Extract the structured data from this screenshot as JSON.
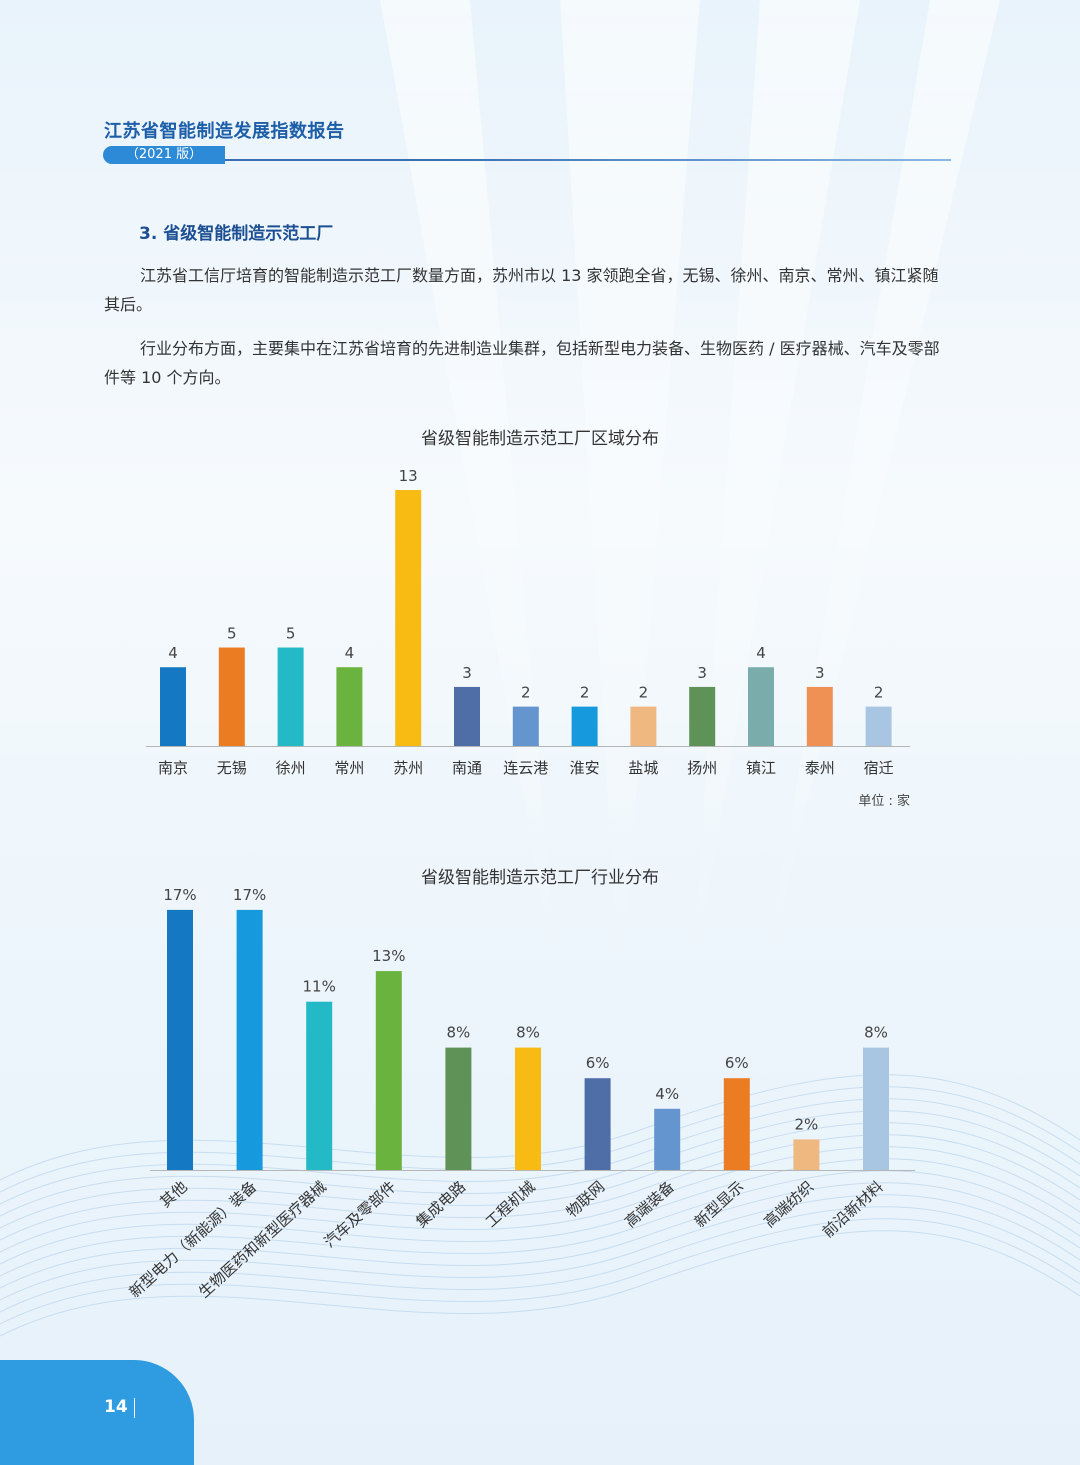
{
  "header": {
    "report_title": "江苏省智能制造发展指数报告",
    "edition": "（2021 版）"
  },
  "section": {
    "title": "3. 省级智能制造示范工厂",
    "paragraphs": [
      "江苏省工信厅培育的智能制造示范工厂数量方面，苏州市以 13 家领跑全省，无锡、徐州、南京、常州、镇江紧随其后。",
      "行业分布方面，主要集中在江苏省培育的先进制造业集群，包括新型电力装备、生物医药 / 医疗器械、汽车及零部件等 10 个方向。"
    ]
  },
  "colors": {
    "accent": "#1d5ea8",
    "page_tab": "#2f9be0"
  },
  "chart_data": [
    {
      "type": "bar",
      "title": "省级智能制造示范工厂区域分布",
      "unit_note": "单位 : 家",
      "categories": [
        "南京",
        "无锡",
        "徐州",
        "常州",
        "苏州",
        "南通",
        "连云港",
        "淮安",
        "盐城",
        "扬州",
        "镇江",
        "泰州",
        "宿迁"
      ],
      "values": [
        4,
        5,
        5,
        4,
        13,
        3,
        2,
        2,
        2,
        3,
        4,
        3,
        2
      ],
      "value_labels": [
        "4",
        "5",
        "5",
        "4",
        "13",
        "3",
        "2",
        "2",
        "2",
        "3",
        "4",
        "3",
        "2"
      ],
      "colors": [
        "#1578c2",
        "#ec7c22",
        "#24b9c6",
        "#6bb33f",
        "#f8bb14",
        "#4f6ea8",
        "#6495cf",
        "#1699dd",
        "#efb880",
        "#5e9257",
        "#7aacab",
        "#ef9155",
        "#a8c6e2"
      ],
      "ylim": [
        0,
        13
      ],
      "grid": false,
      "legend": "none"
    },
    {
      "type": "bar",
      "title": "省级智能制造示范工厂行业分布",
      "categories": [
        "其他",
        "新型电力（新能源）装备",
        "生物医药和新型医疗器械",
        "汽车及零部件",
        "集成电路",
        "工程机械",
        "物联网",
        "高端装备",
        "新型显示",
        "高端纺织",
        "前沿新材料"
      ],
      "values": [
        17,
        17,
        11,
        13,
        8,
        8,
        6,
        4,
        6,
        2,
        8
      ],
      "value_labels": [
        "17%",
        "17%",
        "11%",
        "13%",
        "8%",
        "8%",
        "6%",
        "4%",
        "6%",
        "2%",
        "8%"
      ],
      "colors": [
        "#1578c2",
        "#1699dd",
        "#24b9c6",
        "#6bb33f",
        "#5e9257",
        "#f8bb14",
        "#4f6ea8",
        "#6495cf",
        "#ec7c22",
        "#efb880",
        "#a8c6e2"
      ],
      "grid": false,
      "legend": "none"
    }
  ],
  "footer": {
    "page_number": "14"
  }
}
